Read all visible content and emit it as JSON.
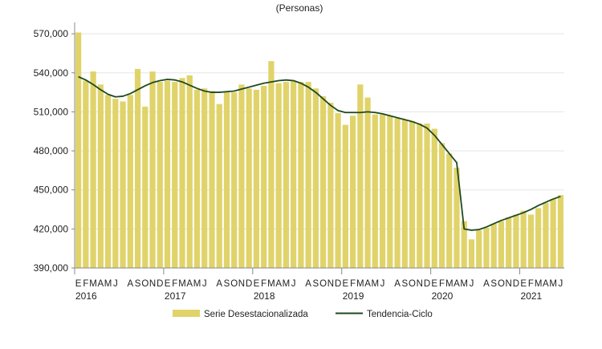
{
  "chart_data": {
    "type": "bar",
    "title": "",
    "subtitle": "(Personas)",
    "xlabel": "",
    "ylabel": "",
    "ylim": [
      390000,
      575000
    ],
    "yticks": [
      390000,
      420000,
      450000,
      480000,
      510000,
      540000,
      570000
    ],
    "ytick_labels": [
      "390,000",
      "420,000",
      "450,000",
      "480,000",
      "510,000",
      "540,000",
      "570,000"
    ],
    "grid": true,
    "legend_position": "bottom",
    "month_letters": [
      "E",
      "F",
      "M",
      "A",
      "M",
      "J",
      "J",
      "A",
      "S",
      "O",
      "N",
      "D"
    ],
    "visible_month_labels": "EFMAMJ J ASOND",
    "years": [
      "2016",
      "2017",
      "2018",
      "2019",
      "2020",
      "2021"
    ],
    "colors": {
      "bars": "#e0d36a",
      "trend": "#1f4a1f",
      "grid": "#e5e5e5",
      "axis": "#888888"
    },
    "series": [
      {
        "name": "Serie Desestacionalizada",
        "type": "bar",
        "values": [
          571000,
          534000,
          541000,
          531000,
          523000,
          520000,
          518000,
          523000,
          543000,
          514000,
          541000,
          533000,
          534000,
          533000,
          536000,
          538000,
          527000,
          528000,
          526000,
          516000,
          526000,
          525000,
          531000,
          528000,
          527000,
          530000,
          549000,
          532000,
          533000,
          534000,
          533000,
          533000,
          528000,
          522000,
          517000,
          509000,
          500000,
          507000,
          531000,
          521000,
          508000,
          508000,
          507000,
          505000,
          504000,
          503000,
          501000,
          501000,
          497000,
          486000,
          478000,
          467000,
          426000,
          412000,
          419000,
          421000,
          424000,
          426000,
          429000,
          431000,
          434000,
          431000,
          436000,
          440000,
          443000,
          446000
        ]
      },
      {
        "name": "Tendencia-Ciclo",
        "type": "line",
        "values": [
          537000,
          534500,
          531000,
          527000,
          523500,
          521500,
          522000,
          524000,
          527000,
          530000,
          532500,
          534000,
          535000,
          534500,
          533000,
          530500,
          528000,
          526000,
          525000,
          525000,
          525500,
          526000,
          527500,
          529000,
          530500,
          532000,
          533000,
          534000,
          534500,
          534000,
          532000,
          529000,
          525000,
          520000,
          515000,
          511000,
          509500,
          509500,
          509500,
          510000,
          509500,
          508500,
          507000,
          505500,
          504000,
          502500,
          500500,
          497500,
          492000,
          485000,
          478000,
          471000,
          420000,
          419000,
          419500,
          421500,
          424000,
          426500,
          428500,
          430500,
          432500,
          435000,
          438000,
          440500,
          443000,
          445000
        ]
      }
    ]
  }
}
